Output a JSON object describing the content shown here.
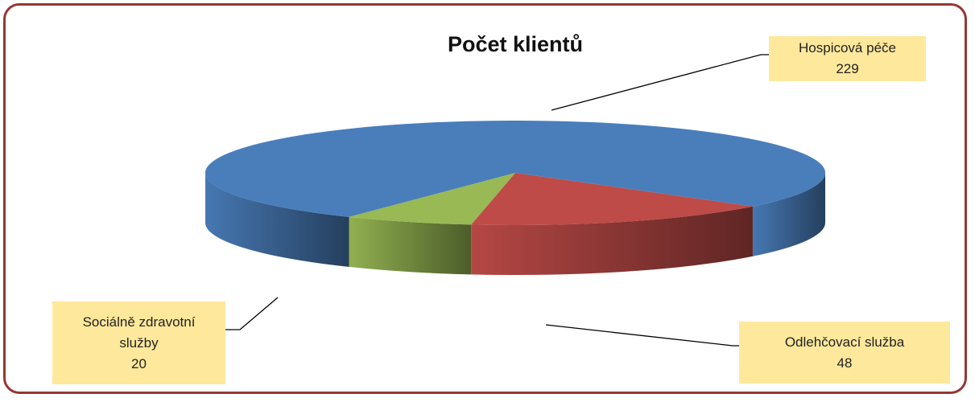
{
  "chart_data": {
    "type": "pie3d",
    "title": "Počet klientů",
    "categories": [
      "Hospicová péče",
      "Odlehčovací služba",
      "Sociálně zdravotní služby"
    ],
    "values": [
      229,
      48,
      20
    ],
    "colors": [
      "#4a7ebb",
      "#be4b48",
      "#98b954"
    ]
  }
}
